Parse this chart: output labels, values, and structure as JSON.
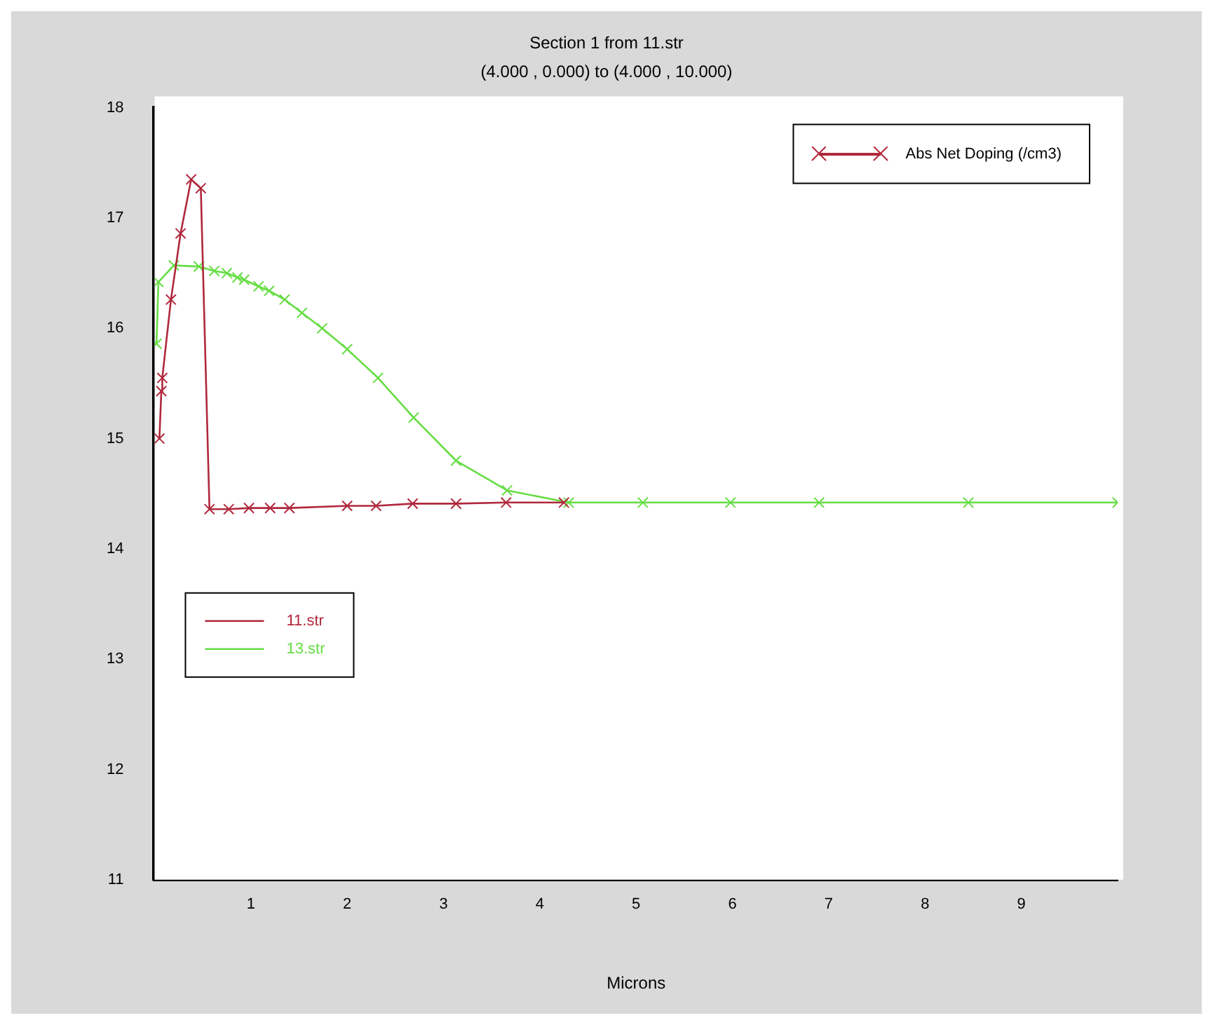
{
  "chart_data": {
    "type": "line",
    "title": "Section 1 from 11.str",
    "subtitle": "(4.000 , 0.000) to (4.000 , 10.000)",
    "xlabel": "Microns",
    "ylabel": "Abs Net Doping (/cm3)",
    "xlim": [
      0,
      10
    ],
    "xticks": [
      1,
      2,
      3,
      4,
      5,
      6,
      7,
      8,
      9
    ],
    "ylim": [
      11,
      18
    ],
    "yticks": [
      11,
      12,
      13,
      14,
      15,
      16,
      17,
      18
    ],
    "grid": false,
    "legend": "left",
    "marker": "cross",
    "line_style": "solid",
    "series": [
      {
        "name": "11.str",
        "color": "#b0283c",
        "x": [
          0.05,
          0.07,
          0.08,
          0.17,
          0.27,
          0.38,
          0.48,
          0.57,
          0.77,
          0.98,
          1.2,
          1.4,
          2.0,
          2.3,
          2.68,
          3.13,
          3.65,
          4.25
        ],
        "values": [
          15.0,
          15.43,
          15.55,
          16.26,
          16.86,
          17.35,
          17.27,
          14.36,
          14.36,
          14.37,
          14.37,
          14.37,
          14.39,
          14.39,
          14.41,
          14.41,
          14.42,
          14.42
        ]
      },
      {
        "name": "13.str",
        "color": "#66dd44",
        "x": [
          0.02,
          0.04,
          0.2,
          0.46,
          0.62,
          0.75,
          0.86,
          0.93,
          1.08,
          1.19,
          1.35,
          1.53,
          1.74,
          2.0,
          2.32,
          2.69,
          3.13,
          3.66,
          4.3,
          5.07,
          5.98,
          6.9,
          8.45,
          10.0
        ],
        "values": [
          15.86,
          16.42,
          16.57,
          16.56,
          16.52,
          16.5,
          16.46,
          16.44,
          16.38,
          16.34,
          16.26,
          16.14,
          16.0,
          15.81,
          15.55,
          15.19,
          14.8,
          14.53,
          14.42,
          14.42,
          14.42,
          14.42,
          14.42,
          14.42
        ]
      }
    ]
  }
}
